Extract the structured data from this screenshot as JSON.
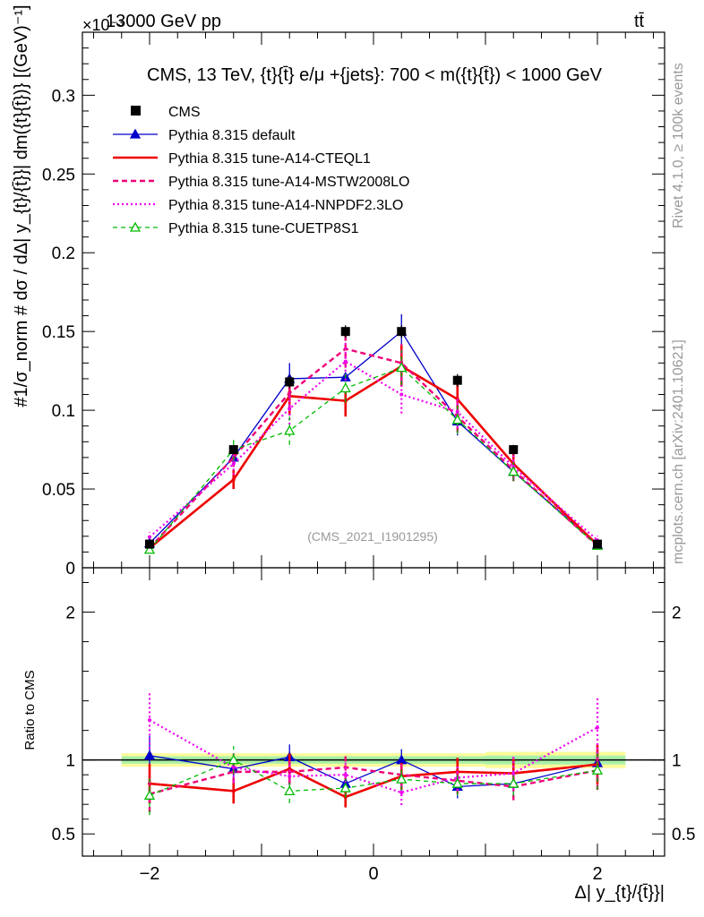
{
  "header": {
    "beam": "13000 GeV pp",
    "process": "tt̄",
    "exponent": "×10⁻³"
  },
  "side_labels": {
    "rivet": "Rivet 4.1.0, ≥ 100k events",
    "mcplots": "mcplots.cern.ch [arXiv:2401.10621]"
  },
  "chart_data": {
    "type": "line",
    "title": "CMS, 13 TeV, {t}{t̄} e/μ +{jets}: 700 < m({t}{t̄}) < 1000 GeV",
    "analysis_id": "(CMS_2021_I1901295)",
    "xlabel": "Δ| y_{t}/{t̄}}|",
    "ylabel": "#1/σ_norm # dσ / dΔ| y_{t}/{t̄}}| dm({t}{t̄})} [(GeV)⁻¹]",
    "ratio_ylabel": "Ratio to CMS",
    "xlim": [
      -2.6,
      2.6
    ],
    "ylim": [
      0,
      0.34
    ],
    "ratio_ylim": [
      0.35,
      2.3
    ],
    "x_ticks": [
      "−2",
      "0",
      "2"
    ],
    "y_ticks": [
      "0",
      "0.05",
      "0.1",
      "0.15",
      "0.2",
      "0.25",
      "0.3"
    ],
    "ratio_ticks": [
      "0.5",
      "1",
      "2"
    ],
    "x": [
      -2.0,
      -1.25,
      -0.75,
      -0.25,
      0.25,
      0.75,
      1.25,
      2.0
    ],
    "series": [
      {
        "name": "CMS",
        "style": "data",
        "color": "#000000",
        "values": [
          0.015,
          0.075,
          0.118,
          0.15,
          0.15,
          0.119,
          0.075,
          0.015
        ],
        "errors": [
          0.001,
          0.003,
          0.004,
          0.004,
          0.004,
          0.004,
          0.003,
          0.001
        ]
      },
      {
        "name": "Pythia 8.315 default",
        "style": "solid-triangle",
        "color": "#0000cc",
        "values": [
          0.0155,
          0.07,
          0.12,
          0.121,
          0.15,
          0.093,
          0.061,
          0.0148
        ],
        "errors": [
          0.002,
          0.006,
          0.01,
          0.0,
          0.011,
          0.009,
          0.006,
          0.002
        ],
        "ratio": [
          1.03,
          0.94,
          1.02,
          0.84,
          1.0,
          0.82,
          0.84,
          0.98
        ]
      },
      {
        "name": "Pythia 8.315 tune-A14-CTEQL1",
        "style": "thick-solid",
        "color": "#ee0000",
        "values": [
          0.0125,
          0.056,
          0.109,
          0.106,
          0.128,
          0.107,
          0.066,
          0.0145
        ],
        "errors": [
          0.002,
          0.006,
          0.012,
          0.01,
          0.013,
          0.011,
          0.007,
          0.002
        ],
        "ratio": [
          0.84,
          0.79,
          0.94,
          0.75,
          0.89,
          0.92,
          0.91,
          0.97
        ]
      },
      {
        "name": "Pythia 8.315 tune-A14-MSTW2008LO",
        "style": "dashed",
        "color": "#ee0077",
        "values": [
          0.0125,
          0.07,
          0.111,
          0.139,
          0.13,
          0.096,
          0.062,
          0.014
        ],
        "errors": [
          0.002,
          0.006,
          0.01,
          0.012,
          0.012,
          0.01,
          0.007,
          0.002
        ],
        "ratio": [
          0.77,
          0.92,
          0.92,
          0.95,
          0.9,
          0.86,
          0.82,
          0.93
        ]
      },
      {
        "name": "Pythia 8.315 tune-A14-NNPDF2.3LO",
        "style": "dotted",
        "color": "#ee00ee",
        "values": [
          0.0195,
          0.066,
          0.101,
          0.131,
          0.11,
          0.099,
          0.064,
          0.0175
        ],
        "errors": [
          0.003,
          0.007,
          0.01,
          0.012,
          0.012,
          0.01,
          0.008,
          0.003
        ],
        "ratio": [
          1.27,
          0.95,
          0.89,
          0.9,
          0.78,
          0.88,
          0.91,
          1.22
        ]
      },
      {
        "name": "Pythia 8.315 tune-CUETP8S1",
        "style": "dashed-open-triangle",
        "color": "#00bb00",
        "values": [
          0.0115,
          0.075,
          0.087,
          0.114,
          0.127,
          0.094,
          0.061,
          0.014
        ],
        "errors": [
          0.002,
          0.007,
          0.009,
          0.009,
          0.011,
          0.009,
          0.006,
          0.002
        ],
        "ratio": [
          0.76,
          1.0,
          0.79,
          0.81,
          0.87,
          0.84,
          0.84,
          0.93
        ]
      }
    ],
    "ratio_bands": {
      "outer_color": "#fbfb9a",
      "inner_color": "#a8f0a8",
      "outer_half_width": [
        0.045,
        0.045,
        0.045,
        0.045,
        0.045,
        0.045,
        0.055,
        0.055
      ],
      "inner_half_width": [
        0.025,
        0.025,
        0.025,
        0.025,
        0.025,
        0.025,
        0.03,
        0.03
      ]
    }
  }
}
